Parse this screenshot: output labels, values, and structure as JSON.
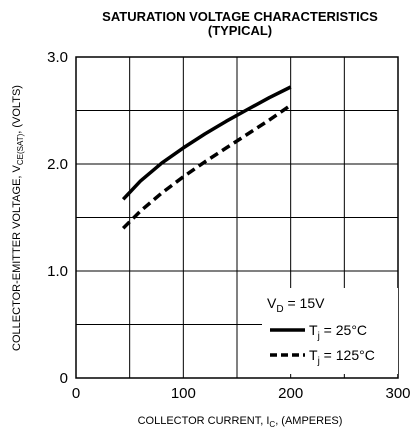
{
  "chart_data": {
    "type": "line",
    "title": "SATURATION VOLTAGE CHARACTERISTICS",
    "subtitle": "(TYPICAL)",
    "xlabel": {
      "main": "COLLECTOR CURRENT, I",
      "sub": "C",
      "tail": ", (AMPERES)"
    },
    "ylabel": {
      "main": "COLLECTOR-EMITTER VOLTAGE, V",
      "sub": "CE(SAT)",
      "tail": ", (VOLTS)"
    },
    "xlim": [
      0,
      300
    ],
    "ylim": [
      0,
      3.0
    ],
    "x_ticks": [
      {
        "value": 0,
        "label": "0"
      },
      {
        "value": 100,
        "label": "100"
      },
      {
        "value": 200,
        "label": "200"
      },
      {
        "value": 300,
        "label": "300"
      }
    ],
    "y_ticks": [
      {
        "value": 0,
        "label": "0"
      },
      {
        "value": 1.0,
        "label": "1.0"
      },
      {
        "value": 2.0,
        "label": "2.0"
      },
      {
        "value": 3.0,
        "label": "3.0"
      }
    ],
    "grid": true,
    "grid_minor_x": [
      50,
      150,
      250
    ],
    "grid_minor_y": [
      0.5,
      1.5,
      2.5
    ],
    "legend_position": "bottom-right",
    "legend_header": {
      "main": "V",
      "sub": "D",
      "tail": " = 15V"
    },
    "series": [
      {
        "name": {
          "main": "T",
          "sub": "j",
          "tail": " = 25°C"
        },
        "style": "solid",
        "x": [
          44,
          60,
          80,
          100,
          120,
          140,
          160,
          180,
          200
        ],
        "y": [
          1.67,
          1.84,
          2.01,
          2.15,
          2.28,
          2.4,
          2.51,
          2.62,
          2.72
        ]
      },
      {
        "name": {
          "main": "T",
          "sub": "j",
          "tail": " = 125°C"
        },
        "style": "dashed",
        "x": [
          44,
          60,
          80,
          100,
          120,
          140,
          160,
          180,
          200
        ],
        "y": [
          1.4,
          1.56,
          1.73,
          1.88,
          2.02,
          2.15,
          2.28,
          2.41,
          2.55
        ]
      }
    ]
  }
}
